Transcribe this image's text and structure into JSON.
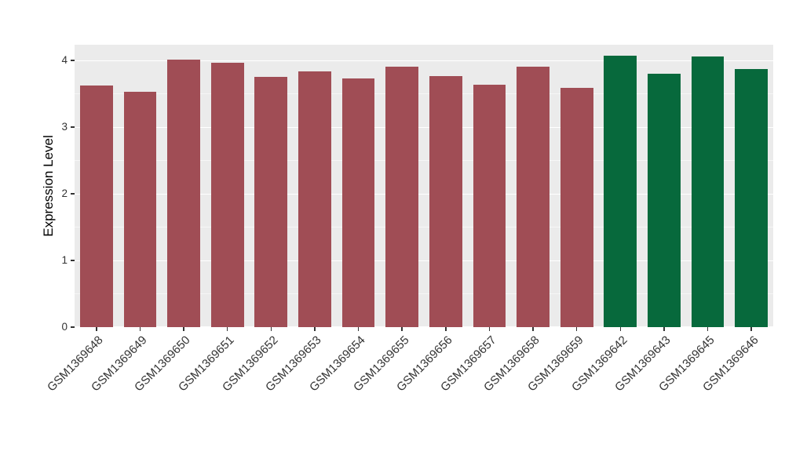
{
  "chart_data": {
    "type": "bar",
    "title": "",
    "xlabel": "",
    "ylabel": "Expression Level",
    "categories": [
      "GSM1369648",
      "GSM1369649",
      "GSM1369650",
      "GSM1369651",
      "GSM1369652",
      "GSM1369653",
      "GSM1369654",
      "GSM1369655",
      "GSM1369656",
      "GSM1369657",
      "GSM1369658",
      "GSM1369659",
      "GSM1369642",
      "GSM1369643",
      "GSM1369645",
      "GSM1369646"
    ],
    "values": [
      3.62,
      3.53,
      4.01,
      3.96,
      3.75,
      3.83,
      3.73,
      3.91,
      3.76,
      3.64,
      3.91,
      3.59,
      4.07,
      3.8,
      4.06,
      3.87
    ],
    "bar_colors": [
      "#A04D55",
      "#A04D55",
      "#A04D55",
      "#A04D55",
      "#A04D55",
      "#A04D55",
      "#A04D55",
      "#A04D55",
      "#A04D55",
      "#A04D55",
      "#A04D55",
      "#A04D55",
      "#07693C",
      "#07693C",
      "#07693C",
      "#07693C"
    ],
    "yticks": [
      0,
      1,
      2,
      3,
      4
    ],
    "ylim": [
      0,
      4.235
    ],
    "grid": true,
    "legend": "none",
    "panel_background": "#EBEBEB",
    "major_gridline_color": "#FFFFFF",
    "axis_text_color": "#333333"
  }
}
